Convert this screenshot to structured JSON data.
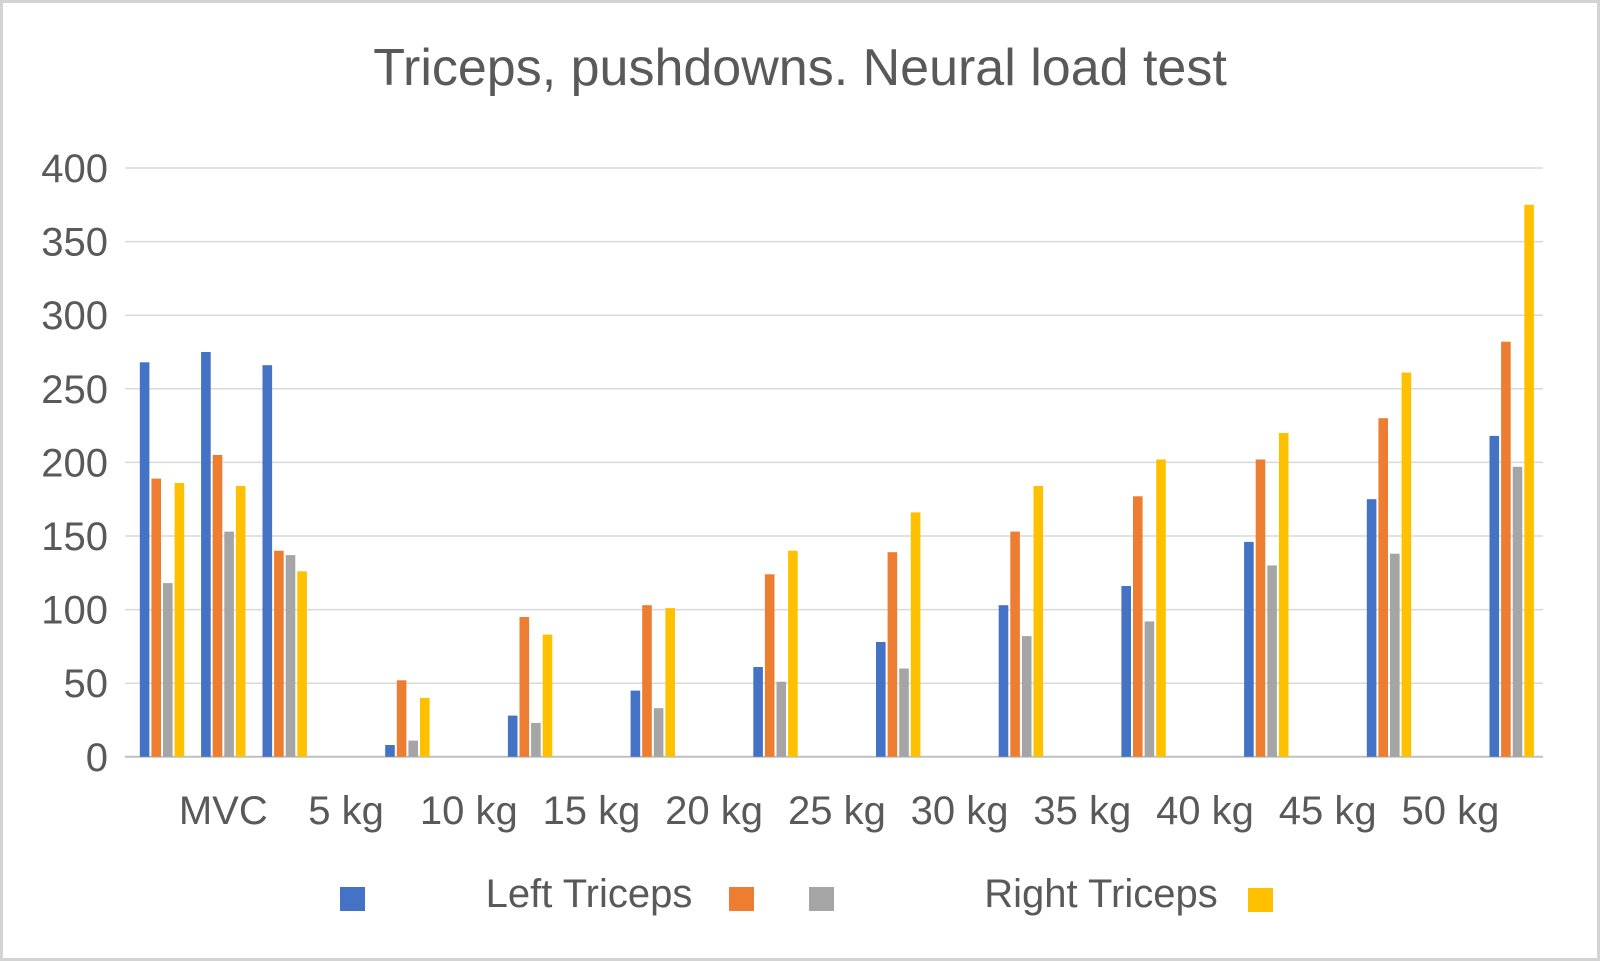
{
  "window": {
    "background": "#FFFFFF",
    "frame_color": "#D3D3D3"
  },
  "colors": {
    "text": "#595959",
    "gridline": "#D9D9D9",
    "baseline": "#C0C0C0",
    "series_blue": "#4472C4",
    "series_orange": "#ED7D31",
    "series_gray": "#A5A5A5",
    "series_yellow": "#FFC000"
  },
  "chart_data": {
    "type": "bar",
    "title": "Triceps, pushdowns. Neural load test",
    "xlabel": "",
    "ylabel": "",
    "ylim": [
      0,
      400
    ],
    "ytick_step": 50,
    "ytick_labels": [
      "0",
      "50",
      "100",
      "150",
      "200",
      "250",
      "300",
      "350",
      "400"
    ],
    "grid": true,
    "categories": [
      "MVC",
      "5 kg",
      "10 kg",
      "15 kg",
      "20 kg",
      "25 kg",
      "30 kg",
      "35 kg",
      "40 kg",
      "45 kg",
      "50 kg"
    ],
    "axis_note": "23 category slots; labels sit on even slots, bar clusters on slots 1,2,3 then every odd slot (labels offset half a slot left of clusters after MVC)",
    "total_slots": 23,
    "category_label_slots": [
      2,
      4,
      6,
      8,
      10,
      12,
      14,
      16,
      18,
      20,
      22
    ],
    "cluster_slots": [
      1,
      2,
      3,
      5,
      7,
      9,
      11,
      13,
      15,
      17,
      19,
      21,
      23
    ],
    "series": [
      {
        "name": "",
        "color": "#4472C4",
        "values": [
          268,
          275,
          266,
          8,
          28,
          45,
          61,
          78,
          103,
          116,
          146,
          175,
          218
        ]
      },
      {
        "name": "",
        "color": "#ED7D31",
        "values": [
          189,
          205,
          140,
          52,
          95,
          103,
          124,
          139,
          153,
          177,
          202,
          230,
          282
        ]
      },
      {
        "name": "",
        "color": "#A5A5A5",
        "values": [
          118,
          153,
          137,
          11,
          23,
          33,
          51,
          60,
          82,
          92,
          130,
          138,
          197
        ]
      },
      {
        "name": "",
        "color": "#FFC000",
        "values": [
          186,
          184,
          126,
          40,
          83,
          101,
          140,
          166,
          184,
          202,
          220,
          261,
          375
        ]
      }
    ],
    "legend": {
      "position": "bottom",
      "items": [
        {
          "swatch": "#4472C4",
          "label": ""
        },
        {
          "swatch": null,
          "label": "Left Triceps"
        },
        {
          "swatch": "#ED7D31",
          "label": ""
        },
        {
          "swatch": "#A5A5A5",
          "label": ""
        },
        {
          "swatch": null,
          "label": "Right Triceps"
        },
        {
          "swatch": "#FFC000",
          "label": ""
        }
      ]
    }
  }
}
